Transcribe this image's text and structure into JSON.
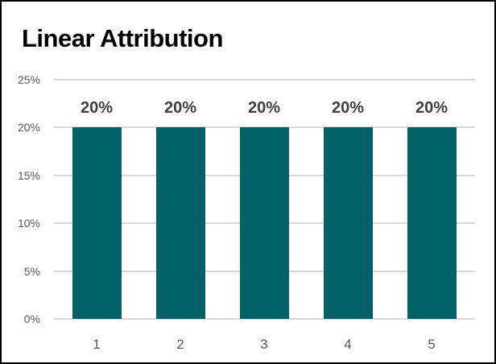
{
  "title": "Linear Attribution",
  "colors": {
    "bar": "#006169",
    "gridline": "#d9d9d9",
    "axis_line": "#d9d9d9",
    "tick_label": "#595959",
    "data_label": "#3f3f3f",
    "title": "#000000",
    "frame_border": "#000000",
    "background": "#ffffff"
  },
  "chart_data": {
    "type": "bar",
    "title": "Linear Attribution",
    "categories": [
      "1",
      "2",
      "3",
      "4",
      "5"
    ],
    "values": [
      20,
      20,
      20,
      20,
      20
    ],
    "data_labels": [
      "20%",
      "20%",
      "20%",
      "20%",
      "20%"
    ],
    "y_ticks": [
      {
        "label": "25%",
        "value": 25
      },
      {
        "label": "20%",
        "value": 20
      },
      {
        "label": "15%",
        "value": 15
      },
      {
        "label": "10%",
        "value": 10
      },
      {
        "label": "5%",
        "value": 5
      },
      {
        "label": "0%",
        "value": 0
      }
    ],
    "ylim": [
      0,
      25
    ],
    "xlabel": "",
    "ylabel": "",
    "grid": true,
    "legend": false,
    "data_labels_shown": true
  }
}
